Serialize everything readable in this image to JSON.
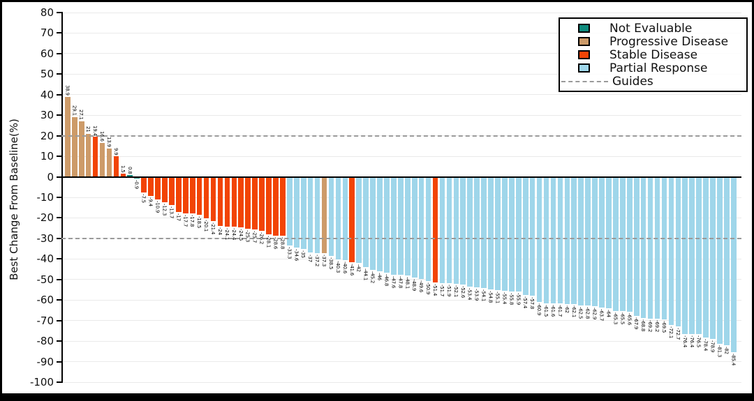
{
  "chart_data": {
    "type": "bar",
    "subtype": "waterfall",
    "title": "",
    "xlabel": "",
    "ylabel": "Best Change From Baseline(%)",
    "ylim": [
      -100,
      80
    ],
    "yticks": [
      80,
      70,
      60,
      50,
      40,
      30,
      20,
      10,
      0,
      -10,
      -20,
      -30,
      -40,
      -50,
      -60,
      -70,
      -80,
      -90,
      -100
    ],
    "guides": [
      20,
      -30
    ],
    "grid": true,
    "legend_position": "top-right",
    "categories": {
      "NE": {
        "label": "Not Evaluable",
        "color": "#0e8b7d"
      },
      "PD": {
        "label": "Progressive Disease",
        "color": "#cd9b69"
      },
      "SD": {
        "label": "Stable Disease",
        "color": "#f24405"
      },
      "PR": {
        "label": "Partial Response",
        "color": "#9fd6ea"
      }
    },
    "guide_color": "#9a9a9a",
    "bars": [
      [
        38.9,
        "PD"
      ],
      [
        29.1,
        "PD"
      ],
      [
        27.1,
        "PD"
      ],
      [
        21,
        "PD"
      ],
      [
        19.4,
        "SD"
      ],
      [
        16.6,
        "PD"
      ],
      [
        13.9,
        "PD"
      ],
      [
        9.9,
        "SD"
      ],
      [
        1.5,
        "SD"
      ],
      [
        0.8,
        "NE"
      ],
      [
        -0.9,
        "NE"
      ],
      [
        -7.5,
        "SD"
      ],
      [
        -9.4,
        "SD"
      ],
      [
        -10.9,
        "SD"
      ],
      [
        -12.3,
        "SD"
      ],
      [
        -13.7,
        "SD"
      ],
      [
        -17,
        "SD"
      ],
      [
        -17.7,
        "SD"
      ],
      [
        -17.8,
        "SD"
      ],
      [
        -18.5,
        "SD"
      ],
      [
        -20.1,
        "SD"
      ],
      [
        -21.4,
        "SD"
      ],
      [
        -24,
        "SD"
      ],
      [
        -24.1,
        "SD"
      ],
      [
        -24.4,
        "SD"
      ],
      [
        -24.5,
        "SD"
      ],
      [
        -25.3,
        "SD"
      ],
      [
        -25.7,
        "SD"
      ],
      [
        -26.2,
        "SD"
      ],
      [
        -28.1,
        "SD"
      ],
      [
        -28.6,
        "SD"
      ],
      [
        -28.8,
        "SD"
      ],
      [
        -33.3,
        "PR"
      ],
      [
        -34.6,
        "PR"
      ],
      [
        -35,
        "PR"
      ],
      [
        -37,
        "PR"
      ],
      [
        -37.2,
        "PR"
      ],
      [
        -37.3,
        "PD"
      ],
      [
        -38.5,
        "PR"
      ],
      [
        -40.3,
        "PR"
      ],
      [
        -40.6,
        "PR"
      ],
      [
        -41.6,
        "SD"
      ],
      [
        -42,
        "PR"
      ],
      [
        -44.1,
        "PR"
      ],
      [
        -45.2,
        "PR"
      ],
      [
        -46,
        "PR"
      ],
      [
        -46.8,
        "PR"
      ],
      [
        -47.6,
        "PR"
      ],
      [
        -47.8,
        "PR"
      ],
      [
        -48.1,
        "PR"
      ],
      [
        -48.9,
        "PR"
      ],
      [
        -49.6,
        "PR"
      ],
      [
        -50.9,
        "PR"
      ],
      [
        -51.4,
        "SD"
      ],
      [
        -51.7,
        "PR"
      ],
      [
        -51.9,
        "PR"
      ],
      [
        -52.1,
        "PR"
      ],
      [
        -52.6,
        "PR"
      ],
      [
        -53.4,
        "PR"
      ],
      [
        -53.9,
        "PR"
      ],
      [
        -54.1,
        "PR"
      ],
      [
        -54.8,
        "PR"
      ],
      [
        -55.1,
        "PR"
      ],
      [
        -55.4,
        "PR"
      ],
      [
        -55.8,
        "PR"
      ],
      [
        -55.9,
        "PR"
      ],
      [
        -57.4,
        "PR"
      ],
      [
        -57.8,
        "PR"
      ],
      [
        -60.9,
        "PR"
      ],
      [
        -61.5,
        "PR"
      ],
      [
        -61.6,
        "PR"
      ],
      [
        -61.7,
        "PR"
      ],
      [
        -62,
        "PR"
      ],
      [
        -62.1,
        "PR"
      ],
      [
        -62.5,
        "PR"
      ],
      [
        -62.8,
        "PR"
      ],
      [
        -62.9,
        "PR"
      ],
      [
        -63.7,
        "PR"
      ],
      [
        -64,
        "PR"
      ],
      [
        -65.3,
        "PR"
      ],
      [
        -65.5,
        "PR"
      ],
      [
        -65.6,
        "PR"
      ],
      [
        -67.9,
        "PR"
      ],
      [
        -68.8,
        "PR"
      ],
      [
        -69.2,
        "PR"
      ],
      [
        -69.2,
        "PR"
      ],
      [
        -69.5,
        "PR"
      ],
      [
        -72.1,
        "PR"
      ],
      [
        -72.7,
        "PR"
      ],
      [
        -76.4,
        "PR"
      ],
      [
        -76.4,
        "PR"
      ],
      [
        -76.5,
        "PR"
      ],
      [
        -78.4,
        "PR"
      ],
      [
        -78.9,
        "PR"
      ],
      [
        -81.3,
        "PR"
      ],
      [
        -82,
        "PR"
      ],
      [
        -85.4,
        "PR"
      ]
    ]
  },
  "legend": {
    "items": [
      {
        "label": "Not Evaluable",
        "swatch": "square",
        "color": "#0e8b7d"
      },
      {
        "label": "Progressive Disease",
        "swatch": "square",
        "color": "#cd9b69"
      },
      {
        "label": "Stable Disease",
        "swatch": "square",
        "color": "#f24405"
      },
      {
        "label": "Partial Response",
        "swatch": "square",
        "color": "#9fd6ea"
      },
      {
        "label": "Guides",
        "swatch": "dash",
        "color": "#9a9a9a"
      }
    ]
  }
}
